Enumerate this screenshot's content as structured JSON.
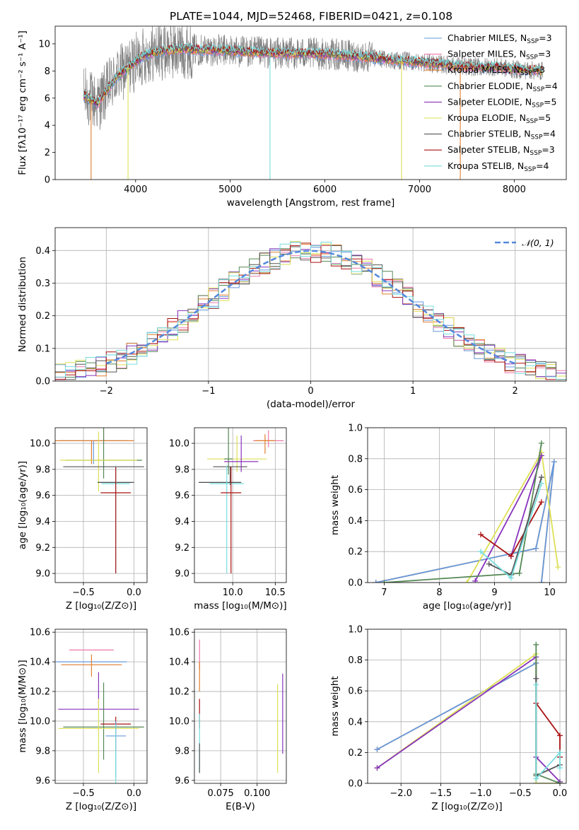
{
  "figure": {
    "title": "PLATE=1044, MJD=52468, FIBERID=0421, z=0.108"
  },
  "chart_data": [
    {
      "id": "spectrum",
      "type": "line",
      "xlabel": "wavelength [Angstrom, rest frame]",
      "ylabel": "Flux [fλ10⁻¹⁷ erg cm⁻² s⁻¹ A⁻¹]",
      "xlim": [
        3150,
        8550
      ],
      "ylim": [
        0,
        11.3
      ],
      "xticks": [
        4000,
        5000,
        6000,
        7000,
        8000
      ],
      "yticks": [
        0,
        2,
        4,
        6,
        8,
        10
      ],
      "grid": false,
      "legend_position": "right",
      "series": [
        {
          "name": "Chabrier MILES, N_SSP=3",
          "color": "#6699dd"
        },
        {
          "name": "Salpeter MILES, N_SSP=3",
          "color": "#ee77aa"
        },
        {
          "name": "Kroupa MILES, N_SSP=3",
          "color": "#e07f2f"
        },
        {
          "name": "Chabrier ELODIE, N_SSP=4",
          "color": "#558855"
        },
        {
          "name": "Salpeter ELODIE, N_SSP=5",
          "color": "#8833bb"
        },
        {
          "name": "Kroupa ELODIE, N_SSP=5",
          "color": "#dde055"
        },
        {
          "name": "Chabrier STELIB, N_SSP=4",
          "color": "#555555"
        },
        {
          "name": "Salpeter STELIB, N_SSP=3",
          "color": "#aa1111"
        },
        {
          "name": "Kroupa STELIB, N_SSP=4",
          "color": "#77dddd"
        }
      ],
      "continuum": {
        "x": [
          3450,
          3600,
          3800,
          3950,
          4100,
          4300,
          4500,
          4800,
          5000,
          5200,
          5500,
          5800,
          6100,
          6300,
          6600,
          6900,
          7200,
          7500,
          7800,
          8000,
          8300
        ],
        "y": [
          6.2,
          5.6,
          7.6,
          8.4,
          9.2,
          9.5,
          9.6,
          9.55,
          9.5,
          9.4,
          9.3,
          9.3,
          9.2,
          9.1,
          8.9,
          8.7,
          8.5,
          8.3,
          8.3,
          8.1,
          8.0
        ]
      },
      "data_range": [
        3450,
        8300
      ],
      "drop_features": [
        {
          "x": 3530,
          "color": "#e07f2f"
        },
        {
          "x": 3920,
          "color": "#dde055"
        },
        {
          "x": 5420,
          "color": "#77dddd"
        },
        {
          "x": 6810,
          "color": "#dde055"
        },
        {
          "x": 7430,
          "color": "#e07f2f"
        }
      ]
    },
    {
      "id": "residuals",
      "type": "histogram",
      "xlabel": "(data-model)/error",
      "ylabel": "Normed distribution",
      "xlim": [
        -2.5,
        2.5
      ],
      "ylim": [
        0,
        0.47
      ],
      "xticks": [
        -2,
        -1,
        0,
        1,
        2
      ],
      "xtick_labels": [
        "−2",
        "−1",
        "0",
        "1",
        "2"
      ],
      "yticks": [
        0.0,
        0.1,
        0.2,
        0.3,
        0.4
      ],
      "ytick_labels": [
        "0.0",
        "0.1",
        "0.2",
        "0.3",
        "0.4"
      ],
      "grid": true,
      "bin_width": 0.1,
      "reference_curve": {
        "name": "𝒩(0, 1)",
        "color": "#5588dd",
        "x_range": [
          -2.0,
          2.0
        ]
      },
      "legend_position": "top-right"
    },
    {
      "id": "age-vs-Z",
      "type": "errorbar",
      "xlabel": "Z [log₁₀(Z/Z⊙)]",
      "ylabel": "age  [log₁₀(age/yr)]",
      "xlim": [
        -0.78,
        0.13
      ],
      "ylim": [
        8.93,
        10.12
      ],
      "xticks": [
        -0.5,
        0.0
      ],
      "xtick_labels": [
        "−0.5",
        "0.0"
      ],
      "yticks": [
        9.0,
        9.2,
        9.4,
        9.6,
        9.8,
        10.0
      ],
      "ytick_labels": [
        "9.0",
        "9.2",
        "9.4",
        "9.6",
        "9.8",
        "10.0"
      ],
      "grid": true,
      "points": [
        {
          "x": -0.4,
          "y": 10.02,
          "xerr": 0.33,
          "yerr": [
            0.18,
            0.0
          ],
          "color": "#6699dd"
        },
        {
          "x": -0.42,
          "y": 10.02,
          "xerr": 0.42,
          "yerr": [
            0.18,
            0.0
          ],
          "color": "#e07f2f"
        },
        {
          "x": -0.3,
          "y": 10.05,
          "xerr": 0.0,
          "yerr": [
            0.05,
            0.08
          ],
          "color": "#ee77aa"
        },
        {
          "x": -0.3,
          "y": 9.87,
          "xerr": 0.38,
          "yerr": [
            0.14,
            0.26
          ],
          "color": "#558855"
        },
        {
          "x": -0.35,
          "y": 9.87,
          "xerr": 0.38,
          "yerr": [
            0.24,
            0.22
          ],
          "color": "#dde055"
        },
        {
          "x": -0.3,
          "y": 9.82,
          "xerr": 0.4,
          "yerr": [
            0.0,
            0.0
          ],
          "color": "#555555"
        },
        {
          "x": -0.18,
          "y": 9.7,
          "xerr": 0.18,
          "yerr": [
            0.0,
            0.0
          ],
          "color": "#333333"
        },
        {
          "x": -0.18,
          "y": 9.69,
          "xerr": 0.14,
          "yerr": [
            0.69,
            0.14
          ],
          "color": "#77dddd"
        },
        {
          "x": -0.18,
          "y": 9.62,
          "xerr": 0.15,
          "yerr": [
            0.62,
            0.2
          ],
          "color": "#aa1111"
        }
      ]
    },
    {
      "id": "age-vs-mass",
      "type": "errorbar",
      "xlabel": "mass [log₁₀(M/M⊙)]",
      "xlim": [
        9.55,
        10.63
      ],
      "ylim": [
        8.93,
        10.12
      ],
      "xticks": [
        10.0,
        10.5
      ],
      "xtick_labels": [
        "10.0",
        "10.5"
      ],
      "yticks": [
        9.0,
        9.2,
        9.4,
        9.6,
        9.8,
        10.0
      ],
      "ytick_labels": [
        "9.0",
        "9.2",
        "9.4",
        "9.6",
        "9.8",
        "10.0"
      ],
      "grid": true,
      "points": [
        {
          "x": 10.42,
          "y": 10.02,
          "xerr": 0.18,
          "yerr": [
            0.05,
            0.08
          ],
          "color": "#ee77aa"
        },
        {
          "x": 10.38,
          "y": 10.02,
          "xerr": 0.12,
          "yerr": [
            0.1,
            0.05
          ],
          "color": "#e07f2f"
        },
        {
          "x": 10.05,
          "y": 9.88,
          "xerr": 0.35,
          "yerr": [
            0.1,
            0.18
          ],
          "color": "#dde055"
        },
        {
          "x": 9.95,
          "y": 9.88,
          "xerr": 0.05,
          "yerr": [
            0.12,
            0.25
          ],
          "color": "#558855"
        },
        {
          "x": 10.1,
          "y": 9.86,
          "xerr": 0.2,
          "yerr": [
            0.08,
            0.2
          ],
          "color": "#8833bb"
        },
        {
          "x": 9.97,
          "y": 9.82,
          "xerr": 0.2,
          "yerr": [
            0.14,
            0.0
          ],
          "color": "#555555"
        },
        {
          "x": 9.85,
          "y": 9.7,
          "xerr": 0.25,
          "yerr": [
            0.0,
            0.0
          ],
          "color": "#333333"
        },
        {
          "x": 9.93,
          "y": 9.69,
          "xerr": 0.2,
          "yerr": [
            0.69,
            0.14
          ],
          "color": "#77dddd"
        },
        {
          "x": 9.98,
          "y": 9.62,
          "xerr": 0.12,
          "yerr": [
            0.62,
            0.2
          ],
          "color": "#aa1111"
        }
      ]
    },
    {
      "id": "weight-vs-age",
      "type": "line",
      "xlabel": "age  [log₁₀(age/yr)]",
      "ylabel": "mass weight",
      "xlim": [
        6.7,
        10.3
      ],
      "ylim": [
        0,
        1.0
      ],
      "xticks": [
        7,
        8,
        9,
        10
      ],
      "yticks": [
        0.0,
        0.2,
        0.4,
        0.6,
        0.8,
        1.0
      ],
      "ytick_labels": [
        "0.0",
        "0.2",
        "0.4",
        "0.6",
        "0.8",
        "1.0"
      ],
      "grid": true,
      "series": [
        {
          "color": "#e07f2f",
          "points": [
            [
              6.85,
              0.0
            ],
            [
              9.75,
              0.22
            ],
            [
              10.08,
              0.78
            ],
            [
              9.85,
              0.0
            ]
          ]
        },
        {
          "color": "#6699dd",
          "points": [
            [
              6.85,
              0.0
            ],
            [
              9.75,
              0.22
            ],
            [
              10.08,
              0.78
            ],
            [
              9.85,
              0.0
            ]
          ]
        },
        {
          "color": "#dde055",
          "points": [
            [
              8.5,
              0.0
            ],
            [
              9.85,
              0.84
            ],
            [
              10.15,
              0.1
            ]
          ]
        },
        {
          "color": "#8833bb",
          "points": [
            [
              8.65,
              0.01
            ],
            [
              9.85,
              0.82
            ],
            [
              9.3,
              0.17
            ]
          ]
        },
        {
          "color": "#558855",
          "points": [
            [
              7.0,
              0.0
            ],
            [
              9.45,
              0.06
            ],
            [
              9.85,
              0.9
            ]
          ]
        },
        {
          "color": "#aa1111",
          "points": [
            [
              8.75,
              0.31
            ],
            [
              9.3,
              0.17
            ],
            [
              9.85,
              0.52
            ]
          ]
        },
        {
          "color": "#555555",
          "points": [
            [
              8.9,
              0.12
            ],
            [
              9.3,
              0.05
            ],
            [
              9.85,
              0.68
            ]
          ]
        },
        {
          "color": "#77dddd",
          "points": [
            [
              8.75,
              0.2
            ],
            [
              9.3,
              0.03
            ],
            [
              9.85,
              0.64
            ]
          ]
        }
      ]
    },
    {
      "id": "mass-vs-Z",
      "type": "errorbar",
      "xlabel": "Z [log₁₀(Z/Z⊙)]",
      "ylabel": "mass [log₁₀(M/M⊙)]",
      "xlim": [
        -0.78,
        0.13
      ],
      "ylim": [
        9.58,
        10.62
      ],
      "xticks": [
        -0.5,
        0.0
      ],
      "xtick_labels": [
        "−0.5",
        "0.0"
      ],
      "yticks": [
        9.6,
        9.8,
        10.0,
        10.2,
        10.4,
        10.6
      ],
      "ytick_labels": [
        "9.6",
        "9.8",
        "10.0",
        "10.2",
        "10.4",
        "10.6"
      ],
      "grid": true,
      "points": [
        {
          "x": -0.42,
          "y": 10.48,
          "xerr": 0.22,
          "yerr": [
            0.0,
            0.0
          ],
          "color": "#ee77aa"
        },
        {
          "x": -0.42,
          "y": 10.4,
          "xerr": 0.35,
          "yerr": [
            0.0,
            0.0
          ],
          "color": "#6699dd"
        },
        {
          "x": -0.42,
          "y": 10.38,
          "xerr": 0.3,
          "yerr": [
            0.08,
            0.07
          ],
          "color": "#e07f2f"
        },
        {
          "x": -0.35,
          "y": 10.08,
          "xerr": 0.4,
          "yerr": [
            0.0,
            0.25
          ],
          "color": "#8833bb"
        },
        {
          "x": -0.3,
          "y": 9.96,
          "xerr": 0.4,
          "yerr": [
            0.22,
            0.3
          ],
          "color": "#558855"
        },
        {
          "x": -0.35,
          "y": 9.95,
          "xerr": 0.4,
          "yerr": [
            0.3,
            0.2
          ],
          "color": "#dde055"
        },
        {
          "x": -0.18,
          "y": 9.98,
          "xerr": 0.15,
          "yerr": [
            0.18,
            0.05
          ],
          "color": "#aa1111"
        },
        {
          "x": -0.18,
          "y": 9.9,
          "xerr": 0.1,
          "yerr": [
            0.28,
            0.1
          ],
          "color": "#6699dd"
        },
        {
          "x": -0.18,
          "y": 9.78,
          "xerr": 0.0,
          "yerr": [
            0.2,
            0.2
          ],
          "color": "#77dddd"
        }
      ]
    },
    {
      "id": "mass-vs-ebv",
      "type": "errorbar",
      "xlabel": "E(B-V)",
      "xlim": [
        0.057,
        0.12
      ],
      "ylim": [
        9.58,
        10.62
      ],
      "xticks": [
        0.075,
        0.1
      ],
      "xtick_labels": [
        "0.075",
        "0.100"
      ],
      "yticks": [
        9.6,
        9.8,
        10.0,
        10.2,
        10.4,
        10.6
      ],
      "ytick_labels": [
        "9.6",
        "9.8",
        "10.0",
        "10.2",
        "10.4",
        "10.6"
      ],
      "grid": true,
      "points": [
        {
          "x": 0.0605,
          "y": 10.45,
          "xerr": 0.0,
          "yerr": [
            0.1,
            0.1
          ],
          "color": "#ee77aa"
        },
        {
          "x": 0.0605,
          "y": 10.3,
          "xerr": 0.0,
          "yerr": [
            0.1,
            0.1
          ],
          "color": "#e07f2f"
        },
        {
          "x": 0.0605,
          "y": 10.05,
          "xerr": 0.0,
          "yerr": [
            0.1,
            0.1
          ],
          "color": "#aa1111"
        },
        {
          "x": 0.0605,
          "y": 9.85,
          "xerr": 0.0,
          "yerr": [
            0.2,
            0.2
          ],
          "color": "#77dddd"
        },
        {
          "x": 0.0605,
          "y": 9.75,
          "xerr": 0.0,
          "yerr": [
            0.1,
            0.1
          ],
          "color": "#555555"
        },
        {
          "x": 0.114,
          "y": 9.95,
          "xerr": 0.0,
          "yerr": [
            0.3,
            0.3
          ],
          "color": "#dde055"
        },
        {
          "x": 0.1175,
          "y": 10.05,
          "xerr": 0.0,
          "yerr": [
            0.27,
            0.27
          ],
          "color": "#8833bb"
        }
      ]
    },
    {
      "id": "weight-vs-Z",
      "type": "line",
      "xlabel": "Z [log₁₀(Z/Z⊙)]",
      "ylabel": "mass weight",
      "xlim": [
        -2.42,
        0.08
      ],
      "ylim": [
        0,
        1.0
      ],
      "xticks": [
        -2.0,
        -1.5,
        -1.0,
        -0.5,
        0.0
      ],
      "xtick_labels": [
        "−2.0",
        "−1.5",
        "−1.0",
        "−0.5",
        "0.0"
      ],
      "yticks": [
        0.0,
        0.2,
        0.4,
        0.6,
        0.8,
        1.0
      ],
      "ytick_labels": [
        "0.0",
        "0.2",
        "0.4",
        "0.6",
        "0.8",
        "1.0"
      ],
      "grid": true,
      "series": [
        {
          "color": "#e07f2f",
          "points": [
            [
              -2.3,
              0.22
            ],
            [
              -0.3,
              0.78
            ],
            [
              -0.3,
              0.0
            ],
            [
              0.0,
              0.0
            ]
          ]
        },
        {
          "color": "#6699dd",
          "points": [
            [
              -2.3,
              0.22
            ],
            [
              -0.3,
              0.78
            ],
            [
              -0.3,
              0.0
            ],
            [
              0.0,
              0.0
            ]
          ]
        },
        {
          "color": "#dde055",
          "points": [
            [
              -2.3,
              0.1
            ],
            [
              -0.3,
              0.84
            ],
            [
              -0.3,
              0.0
            ],
            [
              0.0,
              0.0
            ]
          ]
        },
        {
          "color": "#8833bb",
          "points": [
            [
              -2.3,
              0.1
            ],
            [
              -0.3,
              0.82
            ],
            [
              -0.3,
              0.17
            ],
            [
              0.0,
              0.01
            ]
          ]
        },
        {
          "color": "#558855",
          "points": [
            [
              -0.3,
              0.9
            ],
            [
              -0.3,
              0.06
            ],
            [
              0.0,
              0.0
            ]
          ]
        },
        {
          "color": "#aa1111",
          "points": [
            [
              -0.3,
              0.52
            ],
            [
              0.0,
              0.31
            ],
            [
              0.0,
              0.17
            ]
          ]
        },
        {
          "color": "#555555",
          "points": [
            [
              -0.3,
              0.68
            ],
            [
              -0.3,
              0.05
            ],
            [
              0.0,
              0.12
            ]
          ]
        },
        {
          "color": "#77dddd",
          "points": [
            [
              -0.3,
              0.64
            ],
            [
              -0.3,
              0.03
            ],
            [
              0.0,
              0.2
            ],
            [
              0.0,
              0.1
            ]
          ]
        }
      ]
    }
  ]
}
